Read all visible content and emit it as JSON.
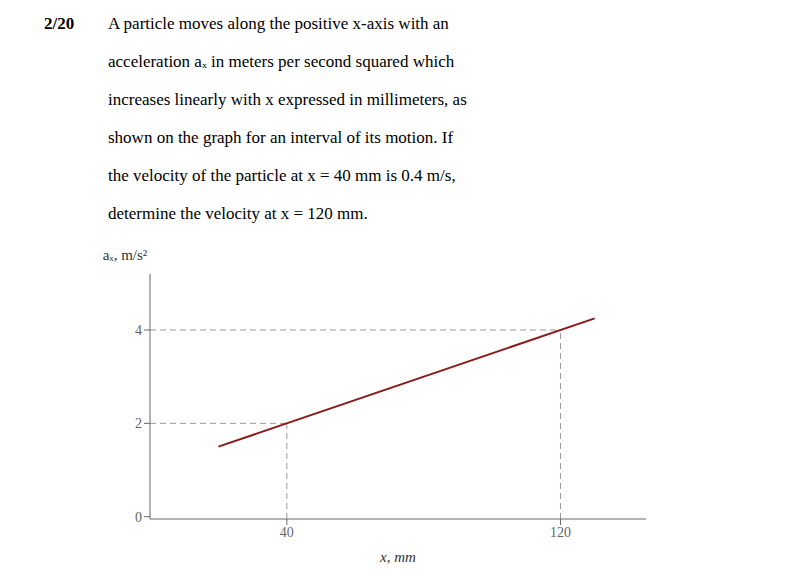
{
  "chart_data": {
    "type": "line",
    "title": "2/20",
    "annotations": [
      "A particle moves along the positive x-axis with an",
      "acceleration aₓ in meters per second squared which",
      "increases linearly with x expressed in millimeters, as",
      "shown on the graph for an interval of its motion. If",
      "the velocity of the particle at x = 40 mm is 0.4 m/s,",
      "determine the velocity at x = 120 mm."
    ],
    "x_label": "x, mm",
    "y_label": "aₓ, m/s²",
    "x": [
      20,
      130
    ],
    "values": [
      1.5,
      4.25
    ],
    "color": "#8B1A1A",
    "reference_points": [
      {
        "x": 40,
        "y": 2
      },
      {
        "x": 120,
        "y": 4
      }
    ],
    "xlim": [
      0,
      145
    ],
    "ylim": [
      -0.05,
      5.2
    ],
    "xticks": [
      40,
      120
    ],
    "yticks": [
      0,
      2,
      4
    ]
  }
}
